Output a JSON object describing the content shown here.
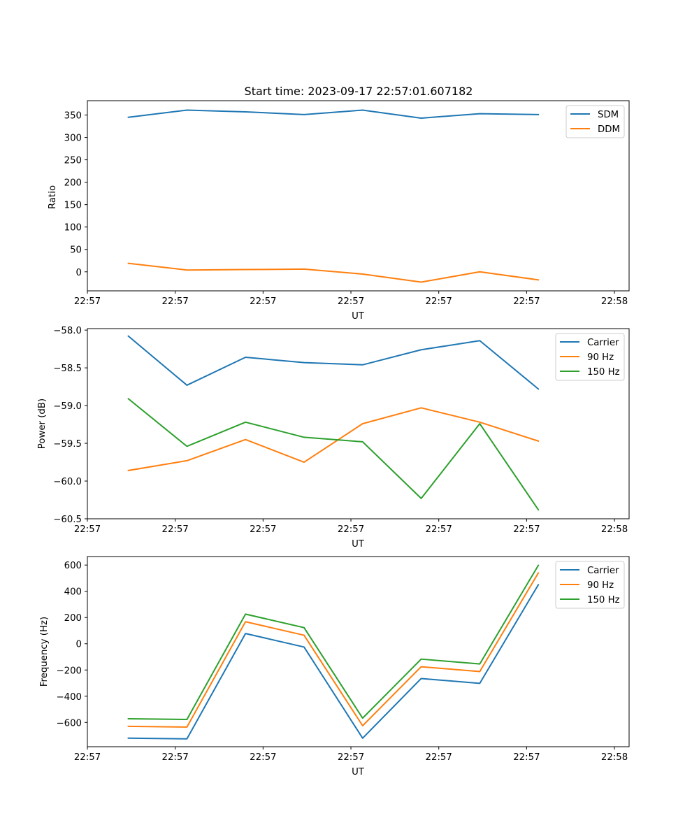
{
  "chart_data": [
    {
      "type": "line",
      "title": "Start time: 2023-09-17 22:57:01.607182",
      "xlabel": "UT",
      "ylabel": "Ratio",
      "xlim": [
        0,
        9.25
      ],
      "ylim": [
        -42.5,
        382
      ],
      "x": [
        0.7,
        1.7,
        2.7,
        3.7,
        4.7,
        5.7,
        6.7,
        7.7
      ],
      "xticks": [
        0,
        1.5,
        3,
        4.5,
        6,
        7.5,
        9
      ],
      "xtick_labels": [
        "22:57",
        "22:57",
        "22:57",
        "22:57",
        "22:57",
        "22:57",
        "22:58"
      ],
      "yticks": [
        0,
        50,
        100,
        150,
        200,
        250,
        300,
        350
      ],
      "ytick_labels": [
        "0",
        "50",
        "100",
        "150",
        "200",
        "250",
        "300",
        "350"
      ],
      "legend_position": "top-right",
      "series": [
        {
          "name": "SDM",
          "color": "#1f77b4",
          "values": [
            345,
            361,
            357,
            351,
            361,
            343,
            353,
            351
          ]
        },
        {
          "name": "DDM",
          "color": "#ff7f0e",
          "values": [
            19,
            4,
            5,
            6,
            -5,
            -23,
            0,
            -18
          ]
        }
      ]
    },
    {
      "type": "line",
      "title": "",
      "xlabel": "UT",
      "ylabel": "Power (dB)",
      "xlim": [
        0,
        9.25
      ],
      "ylim": [
        -60.5,
        -57.98
      ],
      "x": [
        0.7,
        1.7,
        2.7,
        3.7,
        4.7,
        5.7,
        6.7,
        7.7
      ],
      "xticks": [
        0,
        1.5,
        3,
        4.5,
        6,
        7.5,
        9
      ],
      "xtick_labels": [
        "22:57",
        "22:57",
        "22:57",
        "22:57",
        "22:57",
        "22:57",
        "22:58"
      ],
      "yticks": [
        -58.0,
        -58.5,
        -59.0,
        -59.5,
        -60.0,
        -60.5
      ],
      "ytick_labels": [
        "−58.0",
        "−58.5",
        "−59.0",
        "−59.5",
        "−60.0",
        "−60.5"
      ],
      "legend_position": "top-right",
      "series": [
        {
          "name": "Carrier",
          "color": "#1f77b4",
          "values": [
            -58.08,
            -58.73,
            -58.36,
            -58.43,
            -58.46,
            -58.26,
            -58.14,
            -58.78
          ]
        },
        {
          "name": "90 Hz",
          "color": "#ff7f0e",
          "values": [
            -59.86,
            -59.73,
            -59.45,
            -59.75,
            -59.24,
            -59.03,
            -59.22,
            -59.47
          ]
        },
        {
          "name": "150 Hz",
          "color": "#2ca02c",
          "values": [
            -58.91,
            -59.54,
            -59.22,
            -59.42,
            -59.48,
            -60.23,
            -59.24,
            -60.38
          ]
        }
      ]
    },
    {
      "type": "line",
      "title": "",
      "xlabel": "UT",
      "ylabel": "Frequency (Hz)",
      "xlim": [
        0,
        9.25
      ],
      "ylim": [
        -785,
        665
      ],
      "x": [
        0.7,
        1.7,
        2.7,
        3.7,
        4.7,
        5.7,
        6.7,
        7.7
      ],
      "xticks": [
        0,
        1.5,
        3,
        4.5,
        6,
        7.5,
        9
      ],
      "xtick_labels": [
        "22:57",
        "22:57",
        "22:57",
        "22:57",
        "22:57",
        "22:57",
        "22:58"
      ],
      "yticks": [
        -600,
        -400,
        -200,
        0,
        200,
        400,
        600
      ],
      "ytick_labels": [
        "−600",
        "−400",
        "−200",
        "0",
        "200",
        "400",
        "600"
      ],
      "legend_position": "top-right",
      "series": [
        {
          "name": "Carrier",
          "color": "#1f77b4",
          "values": [
            -720,
            -725,
            78,
            -25,
            -720,
            -265,
            -302,
            450
          ]
        },
        {
          "name": "90 Hz",
          "color": "#ff7f0e",
          "values": [
            -630,
            -635,
            168,
            65,
            -625,
            -175,
            -212,
            540
          ]
        },
        {
          "name": "150 Hz",
          "color": "#2ca02c",
          "values": [
            -572,
            -577,
            226,
            123,
            -567,
            -117,
            -154,
            598
          ]
        }
      ]
    }
  ]
}
